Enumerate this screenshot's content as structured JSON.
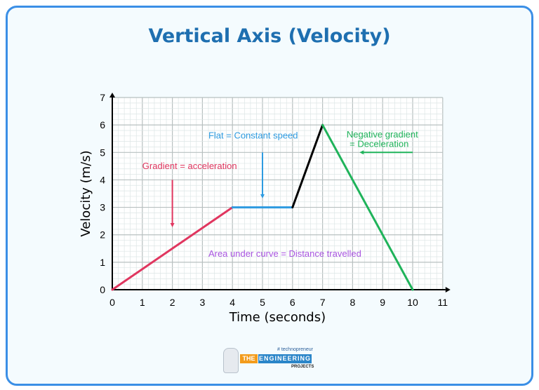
{
  "header": {
    "title": "Vertical Axis (Velocity)"
  },
  "chart_data": {
    "type": "line",
    "xlabel": "Time (seconds)",
    "ylabel": "Velocity (m/s)",
    "xlim": [
      0,
      11
    ],
    "ylim": [
      0,
      7
    ],
    "xticks": [
      "0",
      "1",
      "2",
      "3",
      "4",
      "5",
      "6",
      "7",
      "8",
      "9",
      "10",
      "11"
    ],
    "yticks": [
      "0",
      "1",
      "2",
      "3",
      "4",
      "5",
      "6",
      "7"
    ],
    "grid": true,
    "segments": [
      {
        "points": [
          [
            0,
            0
          ],
          [
            4,
            3
          ]
        ],
        "color": "#e0365f"
      },
      {
        "points": [
          [
            4,
            3
          ],
          [
            6,
            3
          ]
        ],
        "color": "#2e9be0"
      },
      {
        "points": [
          [
            6,
            3
          ],
          [
            7,
            6
          ]
        ],
        "color": "#000000"
      },
      {
        "points": [
          [
            7,
            6
          ],
          [
            10,
            0
          ]
        ],
        "color": "#1fb35a"
      }
    ],
    "annotations": [
      {
        "text": "Gradient = acceleration",
        "color": "#e0365f",
        "at": [
          1,
          4.4
        ],
        "arrow": [
          [
            2,
            4
          ],
          [
            2,
            2.35
          ]
        ]
      },
      {
        "text": "Flat = Constant speed",
        "color": "#2e9be0",
        "at": [
          3.2,
          5.5
        ],
        "arrow": [
          [
            5,
            5
          ],
          [
            5,
            3.4
          ]
        ]
      },
      {
        "text": "Negative gradient",
        "color": "#1fb35a",
        "at": [
          7.8,
          5.55
        ],
        "arrow": [
          [
            10,
            5
          ],
          [
            8.3,
            5
          ]
        ]
      },
      {
        "text": "= Deceleration",
        "color": "#1fb35a",
        "at": [
          7.9,
          5.2
        ]
      },
      {
        "text": "Area under curve = Distance travelled",
        "color": "#a855e0",
        "at": [
          3.2,
          1.2
        ]
      }
    ]
  },
  "logo": {
    "tag": "# technopreneur",
    "the": "THE",
    "engineering": "ENGINEERING",
    "projects": "PROJECTS"
  }
}
